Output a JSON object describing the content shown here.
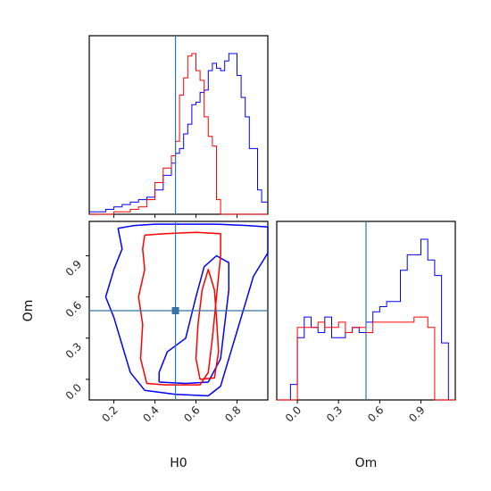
{
  "colors": {
    "blue": "#0000ff",
    "red": "#ff0000",
    "truth": "#3574a4"
  },
  "chart_data": {
    "type": "corner",
    "parameters": [
      "H0",
      "Om"
    ],
    "truth": {
      "H0": 0.5,
      "Om": 0.5
    },
    "series": [
      {
        "color": "#0000ff"
      },
      {
        "color": "#ff0000"
      }
    ],
    "panels": [
      {
        "id": "hist-H0",
        "type": "histogram",
        "xlim": [
          0.08,
          0.95
        ],
        "bin_edges": [
          0.08,
          0.12,
          0.16,
          0.2,
          0.24,
          0.28,
          0.32,
          0.36,
          0.4,
          0.44,
          0.48,
          0.5,
          0.52,
          0.54,
          0.56,
          0.58,
          0.6,
          0.62,
          0.64,
          0.66,
          0.68,
          0.7,
          0.72,
          0.74,
          0.76,
          0.78,
          0.8,
          0.82,
          0.84,
          0.86,
          0.88,
          0.9,
          0.92,
          0.95
        ],
        "blue_counts": [
          1,
          1,
          2,
          3,
          4,
          5,
          6,
          7,
          10,
          16,
          21,
          25,
          27,
          33,
          37,
          45,
          46,
          50,
          51,
          59,
          62,
          60,
          59,
          63,
          66,
          66,
          57,
          48,
          40,
          27,
          27,
          10,
          5
        ],
        "red_counts": [
          0,
          0,
          0,
          1,
          1,
          2,
          3,
          6,
          13,
          19,
          24,
          30,
          49,
          56,
          65,
          66,
          59,
          55,
          40,
          32,
          28,
          6,
          0,
          0,
          0,
          0,
          0,
          0,
          0,
          0,
          0,
          0,
          0
        ],
        "xticks": [
          0.2,
          0.4,
          0.6,
          0.8
        ]
      },
      {
        "id": "hist-Om",
        "type": "histogram",
        "xlim": [
          -0.15,
          1.15
        ],
        "xticks": [
          0.0,
          0.3,
          0.6,
          0.9
        ],
        "xticklabels": [
          "0.0",
          "0.3",
          "0.6",
          "0.9"
        ],
        "xlabel": "Om",
        "bin_edges": [
          -0.15,
          -0.1,
          -0.05,
          0.0,
          0.05,
          0.1,
          0.15,
          0.2,
          0.25,
          0.3,
          0.35,
          0.4,
          0.45,
          0.5,
          0.55,
          0.6,
          0.65,
          0.7,
          0.75,
          0.8,
          0.85,
          0.9,
          0.95,
          1.0,
          1.05,
          1.1,
          1.15
        ],
        "blue_counts": [
          0,
          0,
          3,
          12,
          16,
          14,
          13,
          16,
          12,
          12,
          13,
          14,
          13,
          15,
          17,
          18,
          19,
          19,
          25,
          28,
          28,
          31,
          27,
          24,
          11,
          0
        ],
        "red_counts": [
          0,
          0,
          0,
          14,
          14,
          14,
          15,
          14,
          14,
          15,
          13,
          14,
          14,
          13,
          15,
          15,
          15,
          15,
          15,
          15,
          16,
          16,
          14,
          0,
          0,
          0
        ]
      },
      {
        "id": "contour-H0-Om",
        "type": "contour",
        "xlim": [
          0.08,
          0.95
        ],
        "ylim": [
          -0.15,
          1.15
        ],
        "xticks": [
          0.2,
          0.4,
          0.6,
          0.8
        ],
        "xticklabels": [
          "0.2",
          "0.4",
          "0.6",
          "0.8"
        ],
        "yticks": [
          0.0,
          0.3,
          0.6,
          0.9
        ],
        "yticklabels": [
          "0.0",
          "0.3",
          "0.6",
          "0.9"
        ],
        "xlabel": "H0",
        "ylabel": "Om",
        "contours": [
          {
            "color": "#0000ff",
            "points": [
              [
                0.22,
                1.1
              ],
              [
                0.3,
                1.12
              ],
              [
                0.4,
                1.13
              ],
              [
                0.55,
                1.13
              ],
              [
                0.7,
                1.13
              ],
              [
                0.85,
                1.12
              ],
              [
                0.95,
                1.11
              ],
              [
                0.95,
                0.92
              ],
              [
                0.88,
                0.75
              ],
              [
                0.84,
                0.55
              ],
              [
                0.8,
                0.35
              ],
              [
                0.76,
                0.15
              ],
              [
                0.72,
                -0.05
              ],
              [
                0.66,
                -0.12
              ],
              [
                0.5,
                -0.11
              ],
              [
                0.35,
                -0.08
              ],
              [
                0.28,
                0.05
              ],
              [
                0.24,
                0.25
              ],
              [
                0.2,
                0.45
              ],
              [
                0.16,
                0.6
              ],
              [
                0.2,
                0.8
              ],
              [
                0.24,
                0.95
              ],
              [
                0.22,
                1.1
              ]
            ]
          },
          {
            "color": "#0000ff",
            "points": [
              [
                0.42,
                -0.02
              ],
              [
                0.55,
                -0.03
              ],
              [
                0.66,
                -0.02
              ],
              [
                0.72,
                0.15
              ],
              [
                0.74,
                0.4
              ],
              [
                0.76,
                0.65
              ],
              [
                0.76,
                0.85
              ],
              [
                0.7,
                0.9
              ],
              [
                0.64,
                0.82
              ],
              [
                0.6,
                0.6
              ],
              [
                0.55,
                0.3
              ],
              [
                0.46,
                0.2
              ],
              [
                0.42,
                0.05
              ],
              [
                0.42,
                -0.02
              ]
            ]
          },
          {
            "color": "#ff0000",
            "points": [
              [
                0.35,
                1.05
              ],
              [
                0.45,
                1.06
              ],
              [
                0.6,
                1.07
              ],
              [
                0.72,
                1.06
              ],
              [
                0.72,
                0.9
              ],
              [
                0.7,
                0.6
              ],
              [
                0.68,
                0.3
              ],
              [
                0.66,
                0.05
              ],
              [
                0.62,
                -0.04
              ],
              [
                0.45,
                -0.04
              ],
              [
                0.36,
                -0.03
              ],
              [
                0.33,
                0.15
              ],
              [
                0.34,
                0.4
              ],
              [
                0.32,
                0.6
              ],
              [
                0.35,
                0.8
              ],
              [
                0.34,
                0.95
              ],
              [
                0.35,
                1.05
              ]
            ]
          },
          {
            "color": "#ff0000",
            "points": [
              [
                0.62,
                0.0
              ],
              [
                0.69,
                0.01
              ],
              [
                0.71,
                0.2
              ],
              [
                0.7,
                0.45
              ],
              [
                0.69,
                0.65
              ],
              [
                0.66,
                0.8
              ],
              [
                0.63,
                0.65
              ],
              [
                0.61,
                0.4
              ],
              [
                0.6,
                0.15
              ],
              [
                0.62,
                0.0
              ]
            ]
          }
        ]
      }
    ]
  }
}
